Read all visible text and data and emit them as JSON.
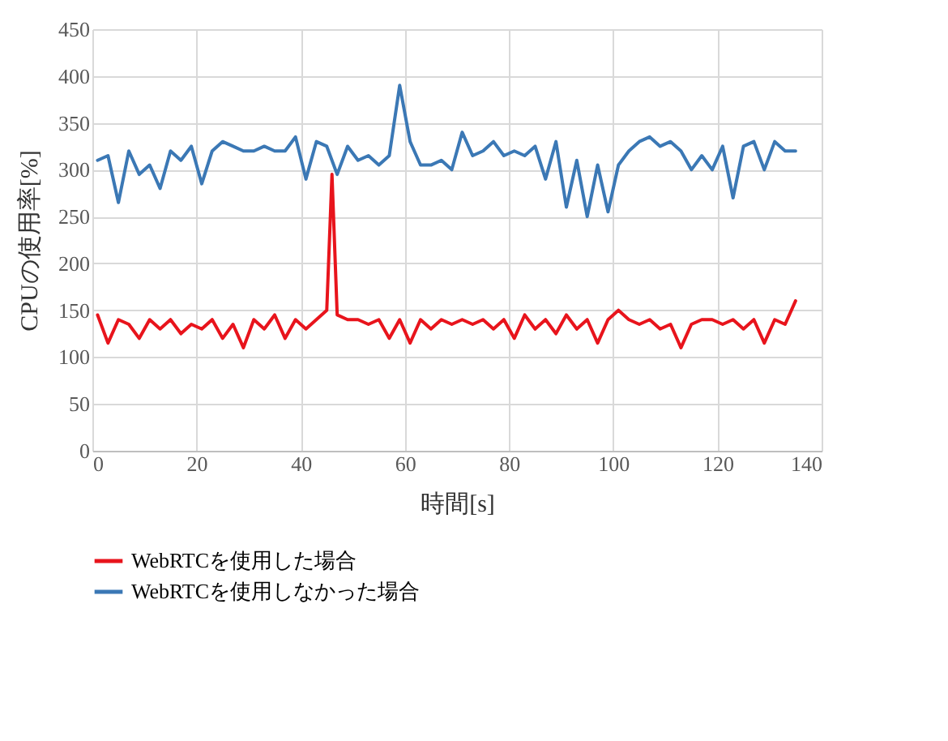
{
  "chart_data": {
    "type": "line",
    "xlabel": "時間[s]",
    "ylabel": "CPUの使用率[%]",
    "xlim": [
      0,
      140
    ],
    "xticks": [
      0,
      20,
      40,
      60,
      80,
      100,
      120,
      140
    ],
    "ylim": [
      0,
      450
    ],
    "yticks": [
      0,
      50,
      100,
      150,
      200,
      250,
      300,
      350,
      400,
      450
    ],
    "grid": true,
    "legend": "bottom",
    "series": [
      {
        "name": "WebRTCを使用した場合",
        "color": "#e8141c",
        "x": [
          1,
          3,
          5,
          7,
          9,
          11,
          13,
          15,
          17,
          19,
          21,
          23,
          25,
          27,
          29,
          31,
          33,
          35,
          37,
          39,
          41,
          43,
          45,
          46,
          47,
          49,
          51,
          53,
          55,
          57,
          59,
          61,
          63,
          65,
          67,
          69,
          71,
          73,
          75,
          77,
          79,
          81,
          83,
          85,
          87,
          89,
          91,
          93,
          95,
          97,
          99,
          101,
          103,
          105,
          107,
          109,
          111,
          113,
          115,
          117,
          119,
          121,
          123,
          125,
          127,
          129,
          131,
          133,
          135
        ],
        "values": [
          145,
          115,
          140,
          135,
          120,
          140,
          130,
          140,
          125,
          135,
          130,
          140,
          120,
          135,
          110,
          140,
          130,
          145,
          120,
          140,
          130,
          140,
          150,
          295,
          145,
          140,
          140,
          135,
          140,
          120,
          140,
          115,
          140,
          130,
          140,
          135,
          140,
          135,
          140,
          130,
          140,
          120,
          145,
          130,
          140,
          125,
          145,
          130,
          140,
          115,
          140,
          150,
          140,
          135,
          140,
          130,
          135,
          110,
          135,
          140,
          140,
          135,
          140,
          130,
          140,
          115,
          140,
          135,
          160
        ]
      },
      {
        "name": "WebRTCを使用しなかった場合",
        "color": "#3b78b5",
        "x": [
          1,
          3,
          5,
          7,
          9,
          11,
          13,
          15,
          17,
          19,
          21,
          23,
          25,
          27,
          29,
          31,
          33,
          35,
          37,
          39,
          41,
          43,
          45,
          47,
          49,
          51,
          53,
          55,
          57,
          59,
          61,
          63,
          65,
          67,
          69,
          71,
          73,
          75,
          77,
          79,
          81,
          83,
          85,
          87,
          89,
          91,
          93,
          95,
          97,
          99,
          101,
          103,
          105,
          107,
          109,
          111,
          113,
          115,
          117,
          119,
          121,
          123,
          125,
          127,
          129,
          131,
          133,
          135
        ],
        "values": [
          310,
          315,
          265,
          320,
          295,
          305,
          280,
          320,
          310,
          325,
          285,
          320,
          330,
          325,
          320,
          320,
          325,
          320,
          320,
          335,
          290,
          330,
          325,
          295,
          325,
          310,
          315,
          305,
          315,
          390,
          330,
          305,
          305,
          310,
          300,
          340,
          315,
          320,
          330,
          315,
          320,
          315,
          325,
          290,
          330,
          260,
          310,
          250,
          305,
          255,
          305,
          320,
          330,
          335,
          325,
          330,
          320,
          300,
          315,
          300,
          325,
          270,
          325,
          330,
          300,
          330,
          320,
          320
        ]
      }
    ]
  }
}
